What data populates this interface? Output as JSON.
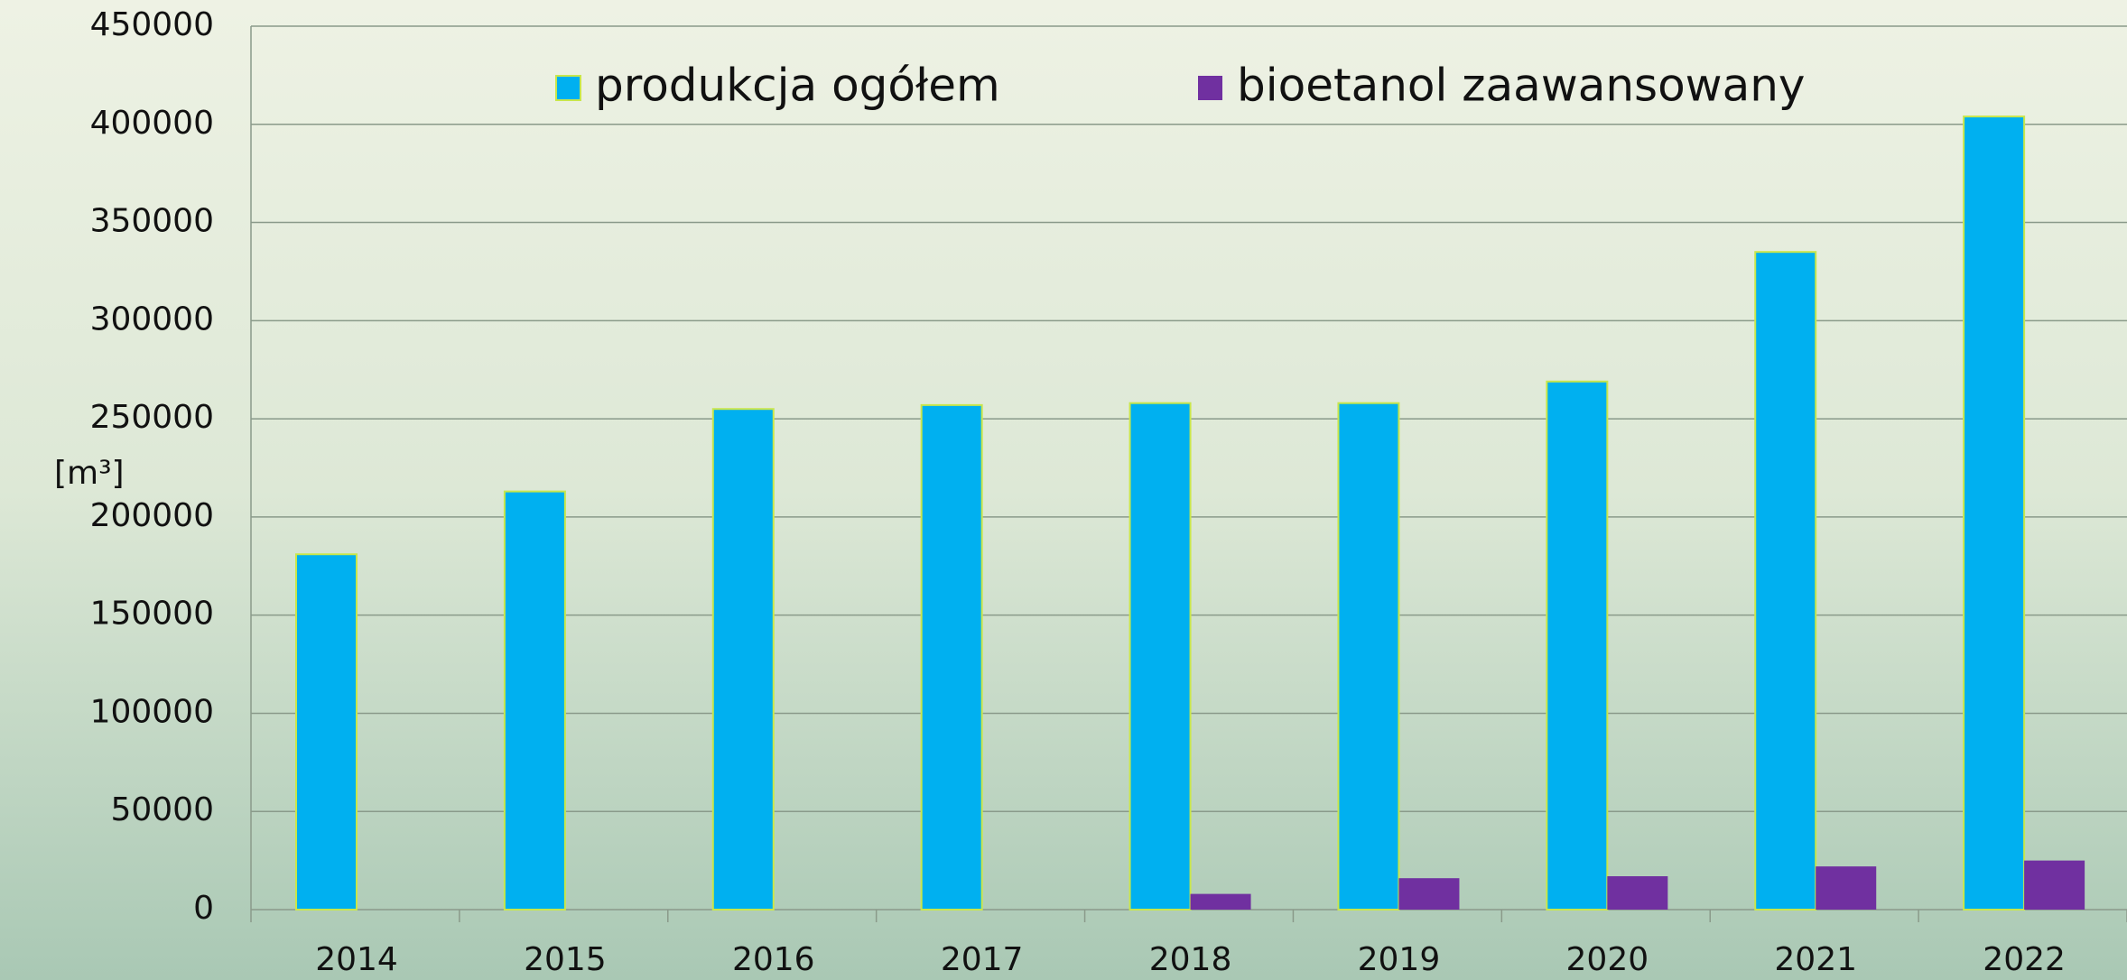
{
  "chart_data": {
    "type": "bar",
    "y_axis_label": "[m³]",
    "categories": [
      "2014",
      "2015",
      "2016",
      "2017",
      "2018",
      "2019",
      "2020",
      "2021",
      "2022"
    ],
    "series": [
      {
        "name": "produkcja ogółem",
        "color": "#00b0f0",
        "values": [
          181000,
          213000,
          255000,
          257000,
          258000,
          258000,
          269000,
          335000,
          404000
        ]
      },
      {
        "name": "bioetanol zaawansowany",
        "color": "#7030a0",
        "values": [
          null,
          null,
          null,
          null,
          8000,
          16000,
          17000,
          22000,
          25000
        ]
      }
    ],
    "ylim": [
      0,
      450000
    ],
    "yticks": [
      0,
      50000,
      100000,
      150000,
      200000,
      250000,
      300000,
      350000,
      400000,
      450000
    ],
    "grid": true
  }
}
